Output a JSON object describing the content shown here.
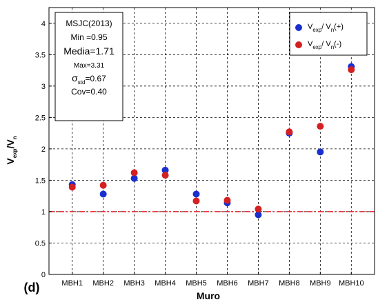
{
  "chart_data": {
    "type": "scatter",
    "panel_label": "(d)",
    "xlabel": "Muro",
    "ylabel": {
      "main": "V",
      "sub1": "exp",
      "mid": "/V",
      "sub2": "n"
    },
    "categories": [
      "MBH1",
      "MBH2",
      "MBH3",
      "MBH4",
      "MBH5",
      "MBH6",
      "MBH7",
      "MBH8",
      "MBH9",
      "MBH10"
    ],
    "ylim": [
      0,
      4.25
    ],
    "yticks": [
      "0",
      "0.5",
      "1",
      "1.5",
      "2",
      "2.5",
      "3",
      "3.5",
      "4"
    ],
    "grid": true,
    "reference_line": {
      "y": 1,
      "color": "#e8242c"
    },
    "series": [
      {
        "name": {
          "a": "V",
          "b": "exp",
          "c": "/ V",
          "d": "n",
          "e": "(+)"
        },
        "color": "#1a2fd0",
        "values": [
          1.43,
          1.28,
          1.53,
          1.66,
          1.28,
          1.14,
          0.95,
          2.25,
          1.95,
          3.31
        ]
      },
      {
        "name": {
          "a": "V",
          "b": "exp",
          "c": "/ V",
          "d": "n",
          "e": "(-)"
        },
        "color": "#d42020",
        "values": [
          1.39,
          1.42,
          1.62,
          1.58,
          1.17,
          1.18,
          1.04,
          2.27,
          2.36,
          3.26
        ]
      }
    ],
    "stats_box": {
      "title": "MSJC(2013)",
      "min": "Min =0.95",
      "media": "Media=1.71",
      "max": "Max=3.31",
      "std_symbol": "σ",
      "std_sub": "std",
      "std_value": "=0.67",
      "cov": "Cov=0.40"
    },
    "legend_position": "top-right"
  }
}
